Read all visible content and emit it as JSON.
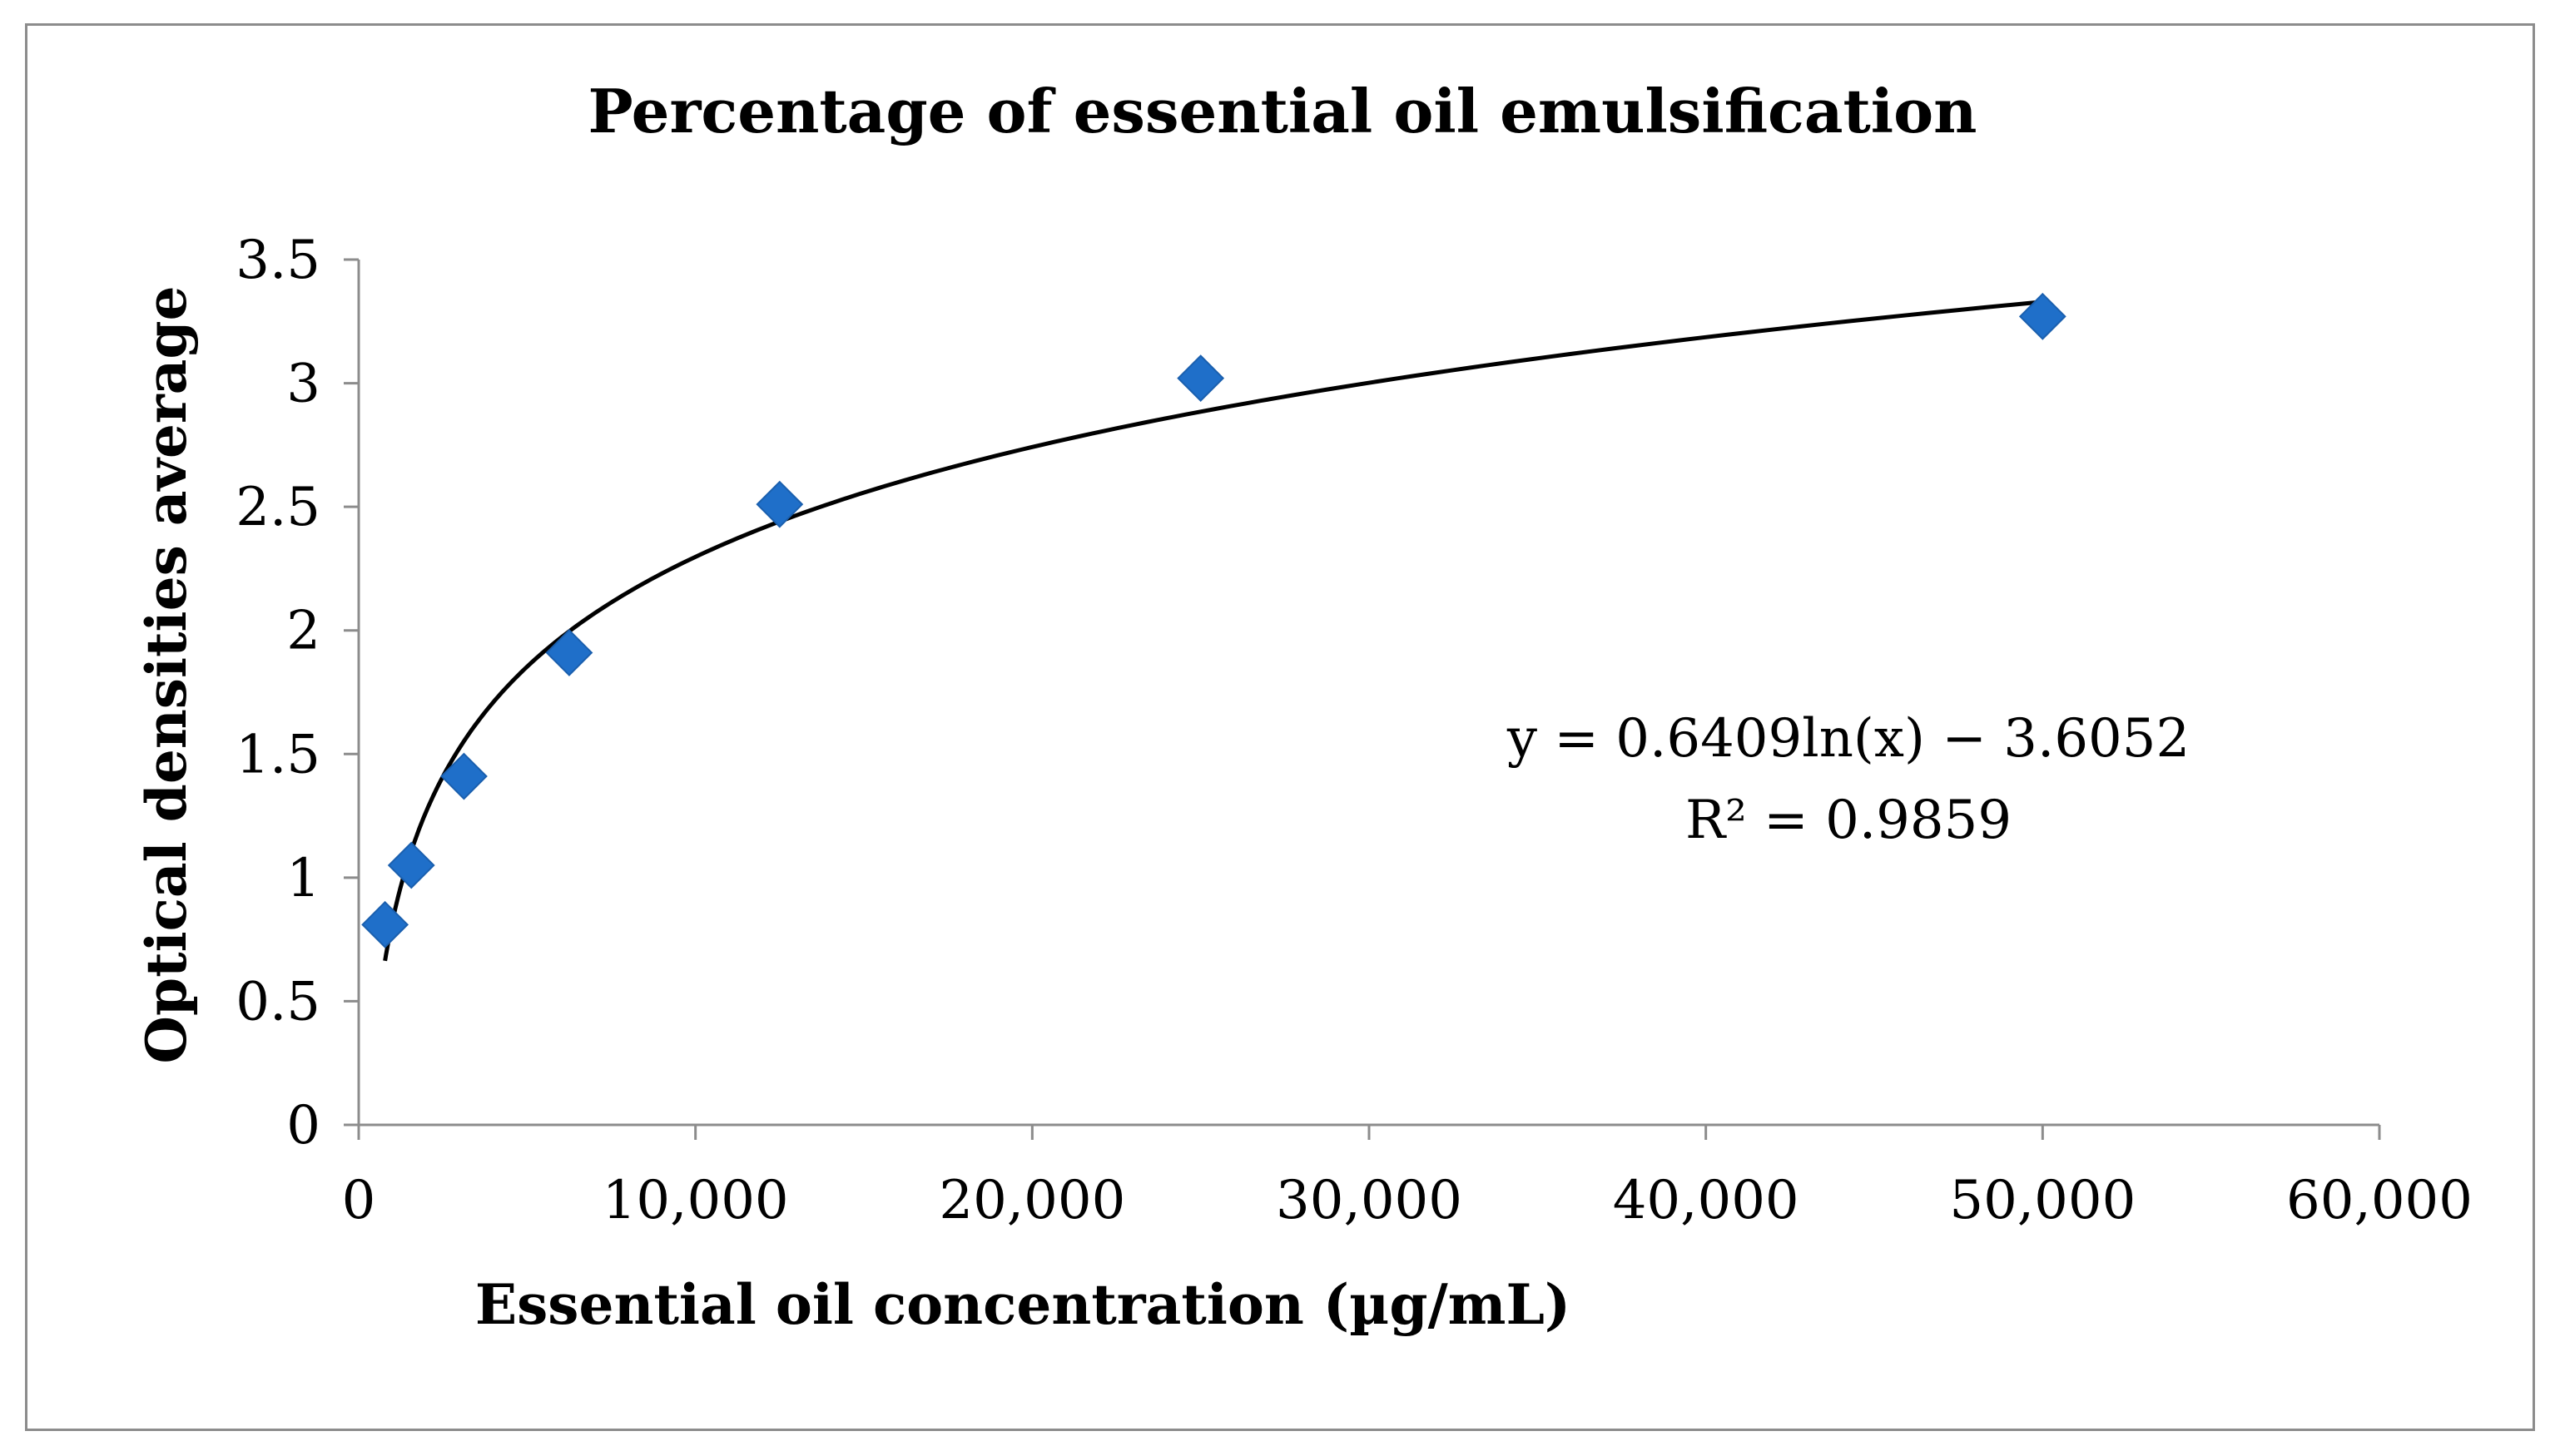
{
  "chart_data": {
    "type": "scatter",
    "title": "Percentage of essential oil emulsification",
    "xlabel": "Essential oil concentration (µg/mL)",
    "ylabel": "Optical densities average",
    "xlim": [
      0,
      60000
    ],
    "ylim": [
      0,
      3.5
    ],
    "x_ticks": [
      0,
      10000,
      20000,
      30000,
      40000,
      50000,
      60000
    ],
    "x_tick_labels": [
      "0",
      "10,000",
      "20,000",
      "30,000",
      "40,000",
      "50,000",
      "60,000"
    ],
    "y_ticks": [
      0,
      0.5,
      1,
      1.5,
      2,
      2.5,
      3,
      3.5
    ],
    "y_tick_labels": [
      "0",
      "0.5",
      "1",
      "1.5",
      "2",
      "2.5",
      "3",
      "3.5"
    ],
    "grid": false,
    "legend": "none",
    "series": [
      {
        "name": "Optical densities average",
        "marker": "diamond",
        "color": "#1f6fc9",
        "points": [
          {
            "x": 781.25,
            "y": 0.81
          },
          {
            "x": 1562.5,
            "y": 1.05
          },
          {
            "x": 3125,
            "y": 1.41
          },
          {
            "x": 6250,
            "y": 1.91
          },
          {
            "x": 12500,
            "y": 2.51
          },
          {
            "x": 25000,
            "y": 3.02
          },
          {
            "x": 50000,
            "y": 3.27
          }
        ]
      }
    ],
    "trendline": {
      "type": "logarithmic",
      "a": 0.6409,
      "b": -3.6052,
      "x_range": [
        781.25,
        50000
      ],
      "color": "#000000",
      "equation_label": "y = 0.6409ln(x) − 3.6052",
      "r2_label": "R² = 0.9859"
    }
  }
}
